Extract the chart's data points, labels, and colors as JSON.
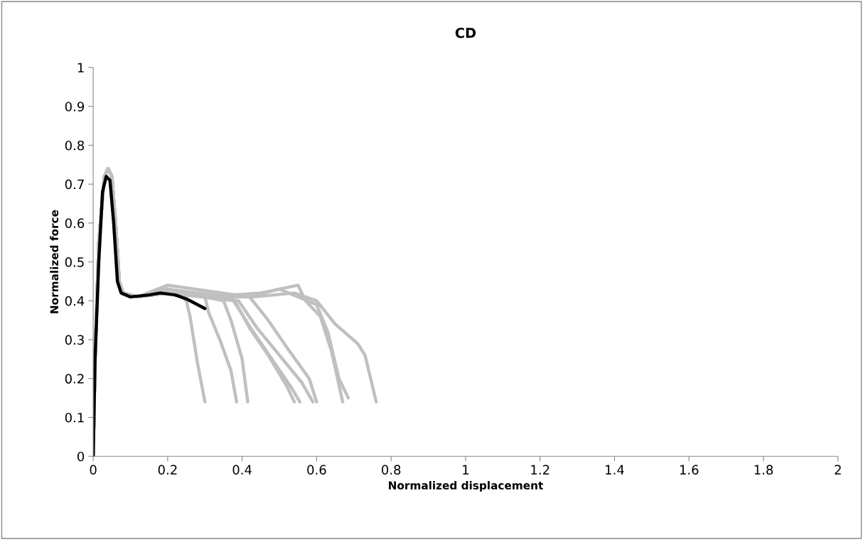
{
  "chart_data": {
    "type": "line",
    "title": "CD",
    "xlabel": "Normalized displacement",
    "ylabel": "Normalized force",
    "xlim": [
      0,
      2
    ],
    "xticks": [
      0,
      0.2,
      0.4,
      0.6,
      0.8,
      1,
      1.2,
      1.4,
      1.6,
      1.8,
      2
    ],
    "ylim": [
      0,
      1
    ],
    "yticks": [
      0,
      0.1,
      0.2,
      0.3,
      0.4,
      0.5,
      0.6,
      0.7,
      0.8,
      0.9,
      1
    ],
    "grid": false,
    "legend": false,
    "marker": "none",
    "line_style": "solid",
    "series": [
      {
        "color": "#c0c0c0",
        "x": [
          0,
          0.005,
          0.015,
          0.03,
          0.04,
          0.05,
          0.06,
          0.07,
          0.08,
          0.12,
          0.2,
          0.24,
          0.25,
          0.26,
          0.28,
          0.3
        ],
        "values": [
          0,
          0.25,
          0.55,
          0.72,
          0.74,
          0.72,
          0.6,
          0.45,
          0.42,
          0.41,
          0.42,
          0.41,
          0.4,
          0.36,
          0.24,
          0.14
        ]
      },
      {
        "color": "#c0c0c0",
        "x": [
          0,
          0.005,
          0.015,
          0.03,
          0.04,
          0.05,
          0.06,
          0.07,
          0.08,
          0.12,
          0.2,
          0.3,
          0.31,
          0.34,
          0.37,
          0.385
        ],
        "values": [
          0,
          0.25,
          0.55,
          0.72,
          0.74,
          0.72,
          0.6,
          0.45,
          0.42,
          0.41,
          0.42,
          0.41,
          0.37,
          0.3,
          0.22,
          0.14
        ]
      },
      {
        "color": "#c0c0c0",
        "x": [
          0,
          0.005,
          0.015,
          0.03,
          0.04,
          0.05,
          0.06,
          0.07,
          0.08,
          0.12,
          0.2,
          0.35,
          0.37,
          0.4,
          0.415
        ],
        "values": [
          0,
          0.25,
          0.55,
          0.72,
          0.74,
          0.72,
          0.6,
          0.45,
          0.42,
          0.41,
          0.43,
          0.4,
          0.35,
          0.25,
          0.14
        ]
      },
      {
        "color": "#c0c0c0",
        "x": [
          0,
          0.005,
          0.015,
          0.03,
          0.04,
          0.05,
          0.06,
          0.07,
          0.08,
          0.12,
          0.2,
          0.38,
          0.42,
          0.47,
          0.52,
          0.54
        ],
        "values": [
          0,
          0.25,
          0.55,
          0.72,
          0.74,
          0.72,
          0.6,
          0.45,
          0.42,
          0.41,
          0.42,
          0.4,
          0.33,
          0.26,
          0.18,
          0.14
        ]
      },
      {
        "color": "#c0c0c0",
        "x": [
          0,
          0.005,
          0.015,
          0.03,
          0.04,
          0.05,
          0.06,
          0.07,
          0.08,
          0.12,
          0.2,
          0.37,
          0.43,
          0.48,
          0.53,
          0.555
        ],
        "values": [
          0,
          0.25,
          0.55,
          0.72,
          0.74,
          0.72,
          0.6,
          0.45,
          0.42,
          0.41,
          0.43,
          0.41,
          0.32,
          0.25,
          0.18,
          0.14
        ]
      },
      {
        "color": "#c0c0c0",
        "x": [
          0,
          0.005,
          0.015,
          0.03,
          0.04,
          0.05,
          0.06,
          0.07,
          0.08,
          0.12,
          0.2,
          0.39,
          0.44,
          0.5,
          0.56,
          0.59
        ],
        "values": [
          0,
          0.25,
          0.55,
          0.72,
          0.74,
          0.72,
          0.6,
          0.45,
          0.42,
          0.41,
          0.42,
          0.4,
          0.33,
          0.26,
          0.19,
          0.14
        ]
      },
      {
        "color": "#c0c0c0",
        "x": [
          0,
          0.005,
          0.015,
          0.03,
          0.04,
          0.05,
          0.06,
          0.07,
          0.08,
          0.12,
          0.2,
          0.42,
          0.47,
          0.52,
          0.58,
          0.6
        ],
        "values": [
          0,
          0.25,
          0.55,
          0.72,
          0.74,
          0.72,
          0.6,
          0.45,
          0.42,
          0.41,
          0.44,
          0.41,
          0.35,
          0.28,
          0.2,
          0.14
        ]
      },
      {
        "color": "#c0c0c0",
        "x": [
          0,
          0.005,
          0.015,
          0.03,
          0.04,
          0.05,
          0.06,
          0.07,
          0.08,
          0.12,
          0.2,
          0.3,
          0.42,
          0.5,
          0.55,
          0.57,
          0.61,
          0.64,
          0.67
        ],
        "values": [
          0,
          0.25,
          0.55,
          0.72,
          0.74,
          0.72,
          0.6,
          0.45,
          0.42,
          0.41,
          0.43,
          0.41,
          0.41,
          0.43,
          0.44,
          0.4,
          0.36,
          0.27,
          0.14
        ]
      },
      {
        "color": "#c0c0c0",
        "x": [
          0,
          0.005,
          0.015,
          0.03,
          0.04,
          0.05,
          0.06,
          0.07,
          0.08,
          0.12,
          0.2,
          0.3,
          0.45,
          0.5,
          0.6,
          0.63,
          0.66,
          0.685
        ],
        "values": [
          0,
          0.25,
          0.55,
          0.72,
          0.74,
          0.72,
          0.6,
          0.45,
          0.42,
          0.41,
          0.43,
          0.41,
          0.42,
          0.43,
          0.39,
          0.32,
          0.2,
          0.15
        ]
      },
      {
        "color": "#c0c0c0",
        "x": [
          0,
          0.005,
          0.015,
          0.03,
          0.04,
          0.05,
          0.06,
          0.07,
          0.08,
          0.12,
          0.2,
          0.3,
          0.43,
          0.54,
          0.6,
          0.65,
          0.71,
          0.73,
          0.76
        ],
        "values": [
          0,
          0.25,
          0.55,
          0.72,
          0.74,
          0.72,
          0.6,
          0.45,
          0.42,
          0.41,
          0.43,
          0.41,
          0.41,
          0.42,
          0.4,
          0.34,
          0.29,
          0.26,
          0.14
        ]
      },
      {
        "color": "#000000",
        "x": [
          0,
          0.005,
          0.015,
          0.025,
          0.035,
          0.045,
          0.055,
          0.065,
          0.075,
          0.1,
          0.15,
          0.18,
          0.22,
          0.25,
          0.28,
          0.3
        ],
        "values": [
          0,
          0.25,
          0.5,
          0.68,
          0.72,
          0.71,
          0.6,
          0.45,
          0.42,
          0.41,
          0.415,
          0.42,
          0.415,
          0.405,
          0.39,
          0.38
        ]
      }
    ]
  }
}
